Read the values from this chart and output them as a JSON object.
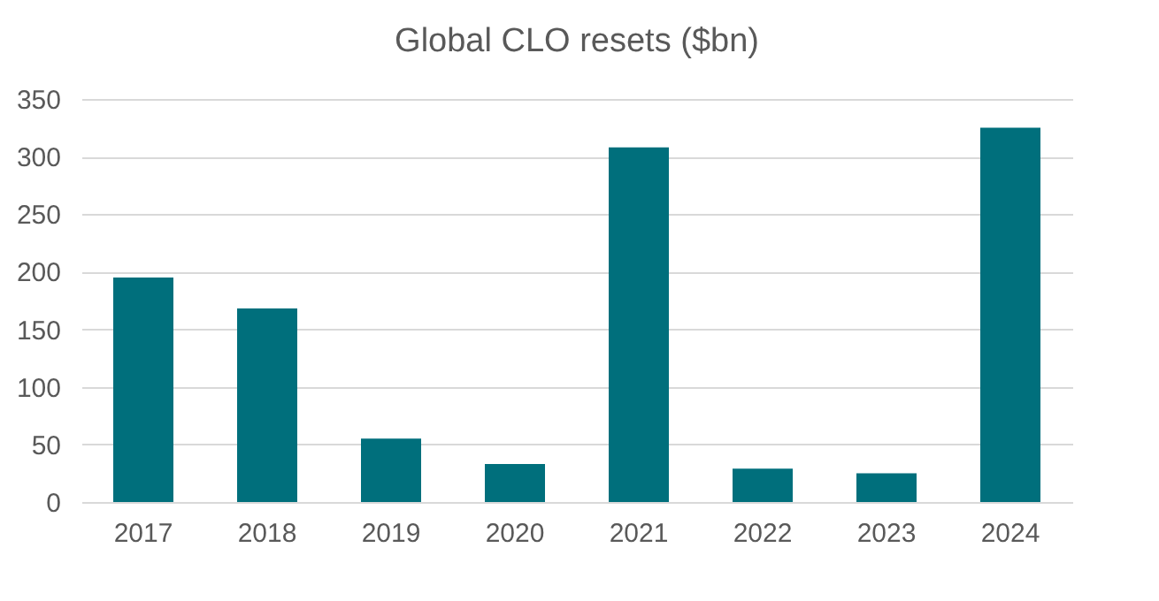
{
  "chart_data": {
    "type": "bar",
    "title": "Global CLO resets ($bn)",
    "categories": [
      "2017",
      "2018",
      "2019",
      "2020",
      "2021",
      "2022",
      "2023",
      "2024"
    ],
    "values": [
      195,
      168,
      55,
      33,
      308,
      29,
      25,
      325
    ],
    "color": "#006f7c",
    "ylim": [
      0,
      350
    ],
    "yticks": [
      0,
      50,
      100,
      150,
      200,
      250,
      300,
      350
    ],
    "grid": "y"
  }
}
